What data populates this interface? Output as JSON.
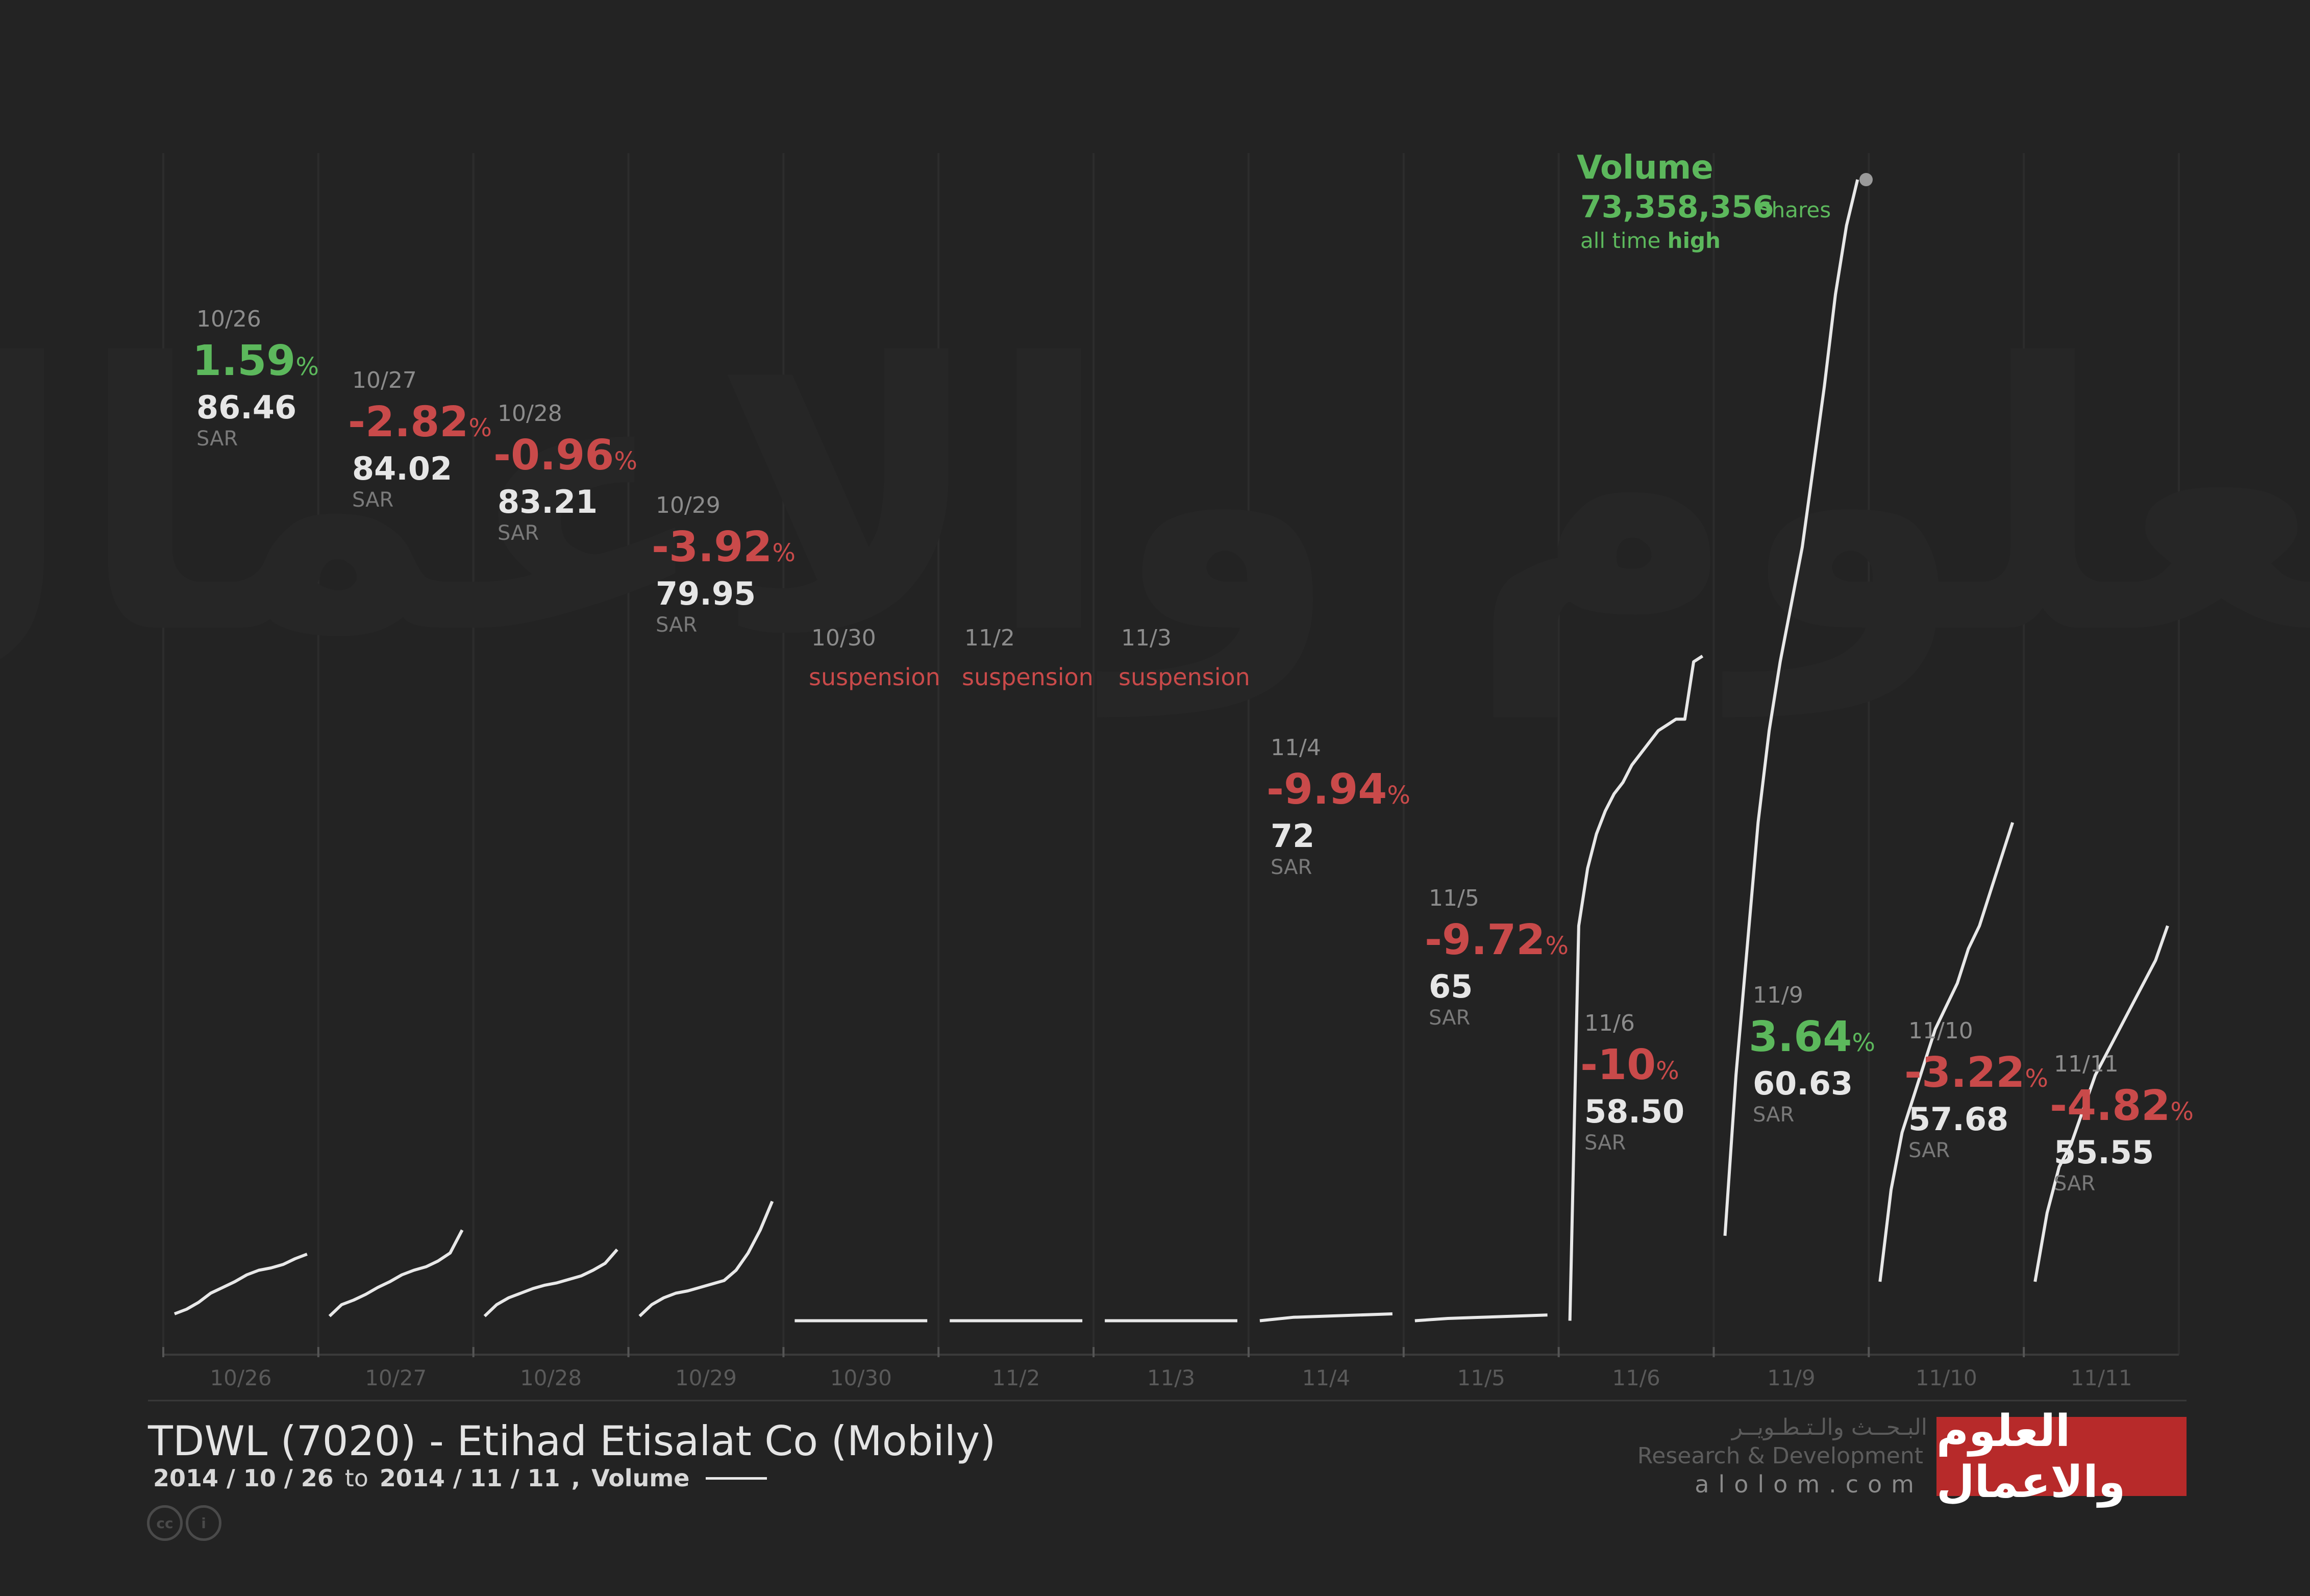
{
  "title": "TDWL (7020) - Etihad Etisalat Co (Mobily)",
  "subtitle": {
    "from": "2014 / 10 / 26",
    "to_word": "to",
    "to": "2014 / 11 / 11",
    "separator": ",",
    "legend_label": "Volume"
  },
  "branding": {
    "arabic_research": "البـحــث والـتـطـويــر",
    "english_research": "Research & Development",
    "site": "alolom.com",
    "logo_text": "العلوم والاعمال",
    "watermark_text": "العلوم والاعمال",
    "license_icons": [
      "cc",
      "by"
    ]
  },
  "colors": {
    "background": "#232323",
    "positive": "#5cb85c",
    "negative": "#c94a4a",
    "line": "#e8e8e8",
    "brand": "#b72a2a"
  },
  "volume_callout": {
    "label": "Volume",
    "value": "73,358,356",
    "unit": "Shares",
    "note_prefix": "all time",
    "note_emphasis": "high"
  },
  "chart_data": {
    "type": "line",
    "title": "TDWL (7020) - Etihad Etisalat Co (Mobily)",
    "series_name": "Volume",
    "y_max_volume_shares": 73358356,
    "days": [
      {
        "label": "10/26",
        "change": "1.59",
        "price": "86.46",
        "unit": "SAR",
        "direction": "up",
        "volume_curve": [
          1.2,
          1.6,
          2.2,
          3.0,
          3.5,
          4.0,
          4.6,
          5.0,
          5.2,
          5.5,
          6.0,
          6.4
        ]
      },
      {
        "label": "10/27",
        "change": "-2.82",
        "price": "84.02",
        "unit": "SAR",
        "direction": "down",
        "volume_curve": [
          1.0,
          2.0,
          2.4,
          2.9,
          3.5,
          4.0,
          4.6,
          5.0,
          5.3,
          5.8,
          6.5,
          8.5
        ]
      },
      {
        "label": "10/28",
        "change": "-0.96",
        "price": "83.21",
        "unit": "SAR",
        "direction": "down",
        "volume_curve": [
          1.0,
          2.0,
          2.6,
          3.0,
          3.4,
          3.7,
          3.9,
          4.2,
          4.5,
          5.0,
          5.6,
          6.8
        ]
      },
      {
        "label": "10/29",
        "change": "-3.92",
        "price": "79.95",
        "unit": "SAR",
        "direction": "down",
        "volume_curve": [
          1.0,
          2.0,
          2.6,
          3.0,
          3.2,
          3.5,
          3.8,
          4.1,
          5.0,
          6.5,
          8.5,
          11.0
        ]
      },
      {
        "label": "10/30",
        "suspension": "suspension",
        "volume_curve": [
          0.6,
          0.6
        ]
      },
      {
        "label": "11/2",
        "suspension": "suspension",
        "volume_curve": [
          0.6,
          0.6
        ]
      },
      {
        "label": "11/3",
        "suspension": "suspension",
        "volume_curve": [
          0.6,
          0.6
        ]
      },
      {
        "label": "11/4",
        "change": "-9.94",
        "price": "72",
        "unit": "SAR",
        "direction": "down",
        "volume_curve": [
          0.6,
          0.9,
          1.0,
          1.1,
          1.2
        ]
      },
      {
        "label": "11/5",
        "change": "-9.72",
        "price": "65",
        "unit": "SAR",
        "direction": "down",
        "volume_curve": [
          0.6,
          0.8,
          0.9,
          1.0,
          1.1
        ]
      },
      {
        "label": "11/6",
        "change": "-10",
        "price": "58.50",
        "unit": "SAR",
        "direction": "down",
        "volume_curve": [
          0.6,
          35,
          40,
          43,
          45,
          46.5,
          47.5,
          49,
          50,
          51,
          52,
          52.5,
          53,
          53,
          58,
          58.5
        ]
      },
      {
        "label": "11/9",
        "change": "3.64",
        "price": "60.63",
        "unit": "SAR",
        "direction": "up",
        "volume_curve": [
          8,
          22,
          33,
          44,
          52,
          58,
          63,
          68,
          75,
          82,
          90,
          96,
          100
        ]
      },
      {
        "label": "11/10",
        "change": "-3.22",
        "price": "57.68",
        "unit": "SAR",
        "direction": "down",
        "volume_curve": [
          4,
          12,
          17,
          20,
          23,
          26,
          28,
          30,
          33,
          35,
          38,
          41,
          44
        ]
      },
      {
        "label": "11/11",
        "change": "-4.82",
        "price": "55.55",
        "unit": "SAR",
        "direction": "down",
        "volume_curve": [
          4,
          10,
          14,
          16,
          19,
          22,
          24,
          26,
          28,
          30,
          32,
          35
        ]
      }
    ]
  }
}
